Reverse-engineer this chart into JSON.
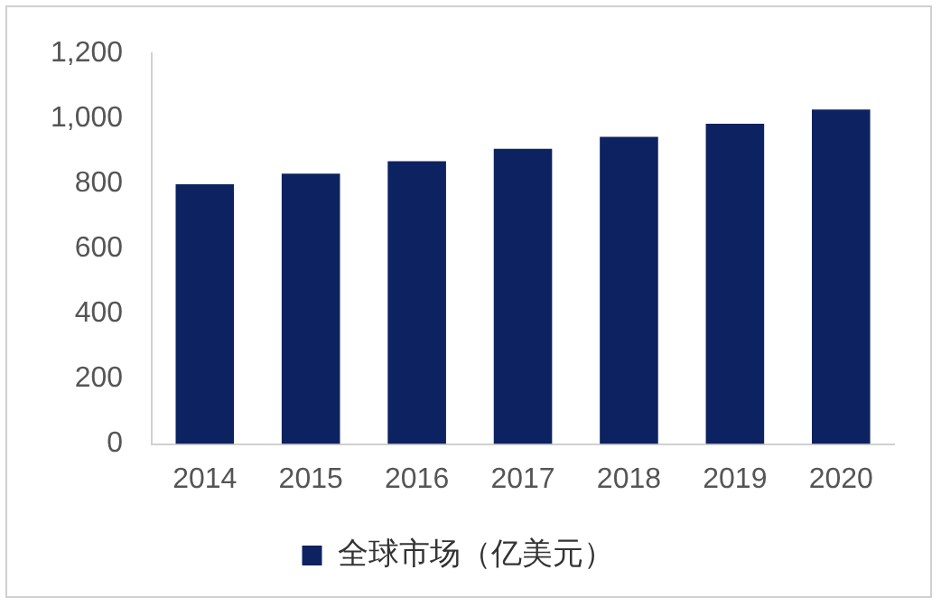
{
  "chart_data": {
    "type": "bar",
    "categories": [
      "2014",
      "2015",
      "2016",
      "2017",
      "2018",
      "2019",
      "2020"
    ],
    "series": [
      {
        "name": "全球市场（亿美元）",
        "color": "#0d2260",
        "values": [
          798,
          831,
          869,
          907,
          944,
          984,
          1028
        ]
      }
    ],
    "ylim": [
      0,
      1200
    ],
    "yticks": [
      0,
      {
        "value": 200,
        "label": "200"
      },
      {
        "value": 400,
        "label": "400"
      },
      {
        "value": 600,
        "label": "600"
      },
      {
        "value": 800,
        "label": "800"
      },
      {
        "value": 1000,
        "label": "1,000"
      },
      {
        "value": 1200,
        "label": "1,200"
      }
    ],
    "grid": false,
    "legend": "bottom"
  }
}
